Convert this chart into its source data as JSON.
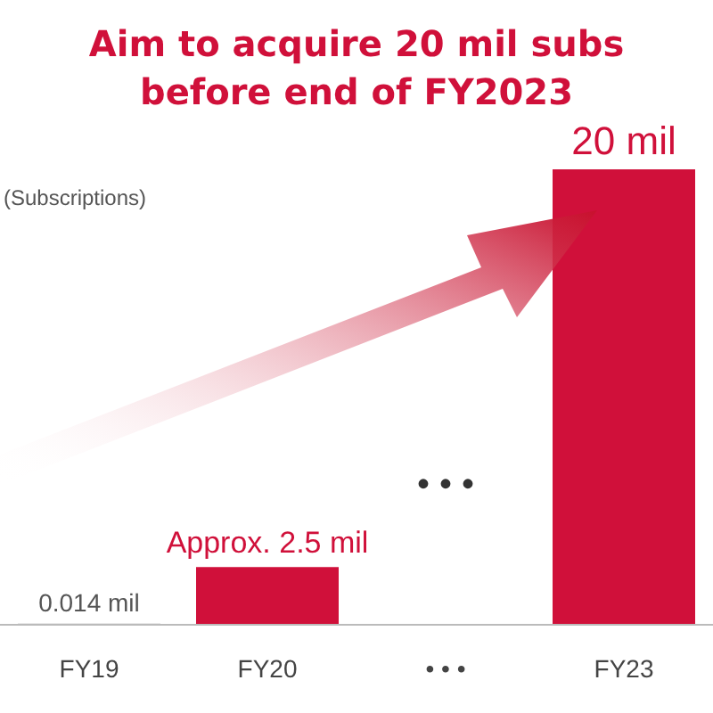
{
  "chart_data": {
    "type": "bar",
    "title": "Aim to acquire 20 mil subs\nbefore end of FY2023",
    "ylabel": "(Subscriptions)",
    "categories": [
      "FY19",
      "FY20",
      "• • •",
      "FY23"
    ],
    "values": [
      0.014,
      2.5,
      null,
      20
    ],
    "colors": [
      "#a6a6a6",
      "#d0103a",
      null,
      "#d0103a"
    ],
    "value_labels": [
      "0.014 mil",
      "Approx. 2.5 mil",
      null,
      "20 mil"
    ],
    "ylim": [
      0,
      20
    ],
    "grid": false,
    "annotations": [
      "• • •"
    ]
  }
}
